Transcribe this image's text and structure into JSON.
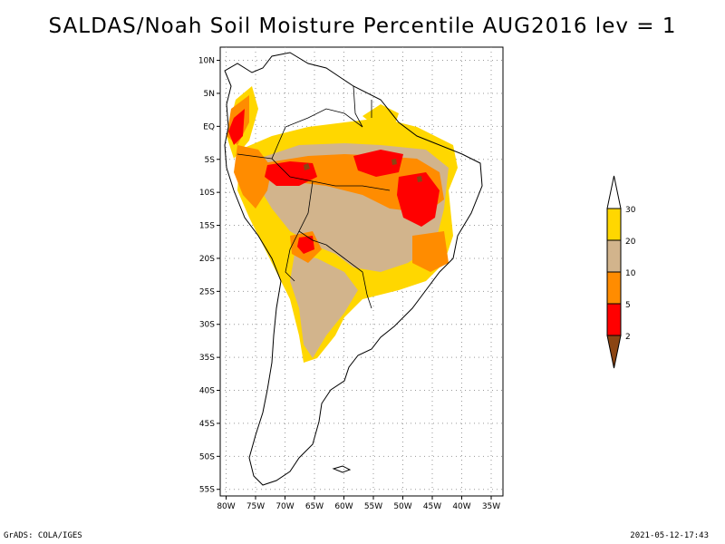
{
  "title": "SALDAS/Noah Soil Moisture Percentile AUG2016 lev = 1",
  "axes": {
    "lat_labels": [
      "10N",
      "5N",
      "EQ",
      "5S",
      "10S",
      "15S",
      "20S",
      "25S",
      "30S",
      "35S",
      "40S",
      "45S",
      "50S",
      "55S"
    ],
    "lat_values": [
      10,
      5,
      0,
      -5,
      -10,
      -15,
      -20,
      -25,
      -30,
      -35,
      -40,
      -45,
      -50,
      -55
    ],
    "lon_labels": [
      "80W",
      "75W",
      "70W",
      "65W",
      "60W",
      "55W",
      "50W",
      "45W",
      "40W",
      "35W"
    ],
    "lon_values": [
      -80,
      -75,
      -70,
      -65,
      -60,
      -55,
      -50,
      -45,
      -40,
      -35
    ],
    "lat_range": [
      -56,
      12
    ],
    "lon_range": [
      -81,
      -33
    ],
    "grid": "dotted"
  },
  "colorbar": {
    "labels": [
      "2",
      "5",
      "10",
      "20",
      "30"
    ],
    "colors": [
      "#8b4513",
      "#ff0000",
      "#ff8c00",
      "#d2b48c",
      "#ffd700",
      "#ffffff"
    ]
  },
  "footer": {
    "left": "GrADS: COLA/IGES",
    "right": "2021-05-12-17:43"
  }
}
